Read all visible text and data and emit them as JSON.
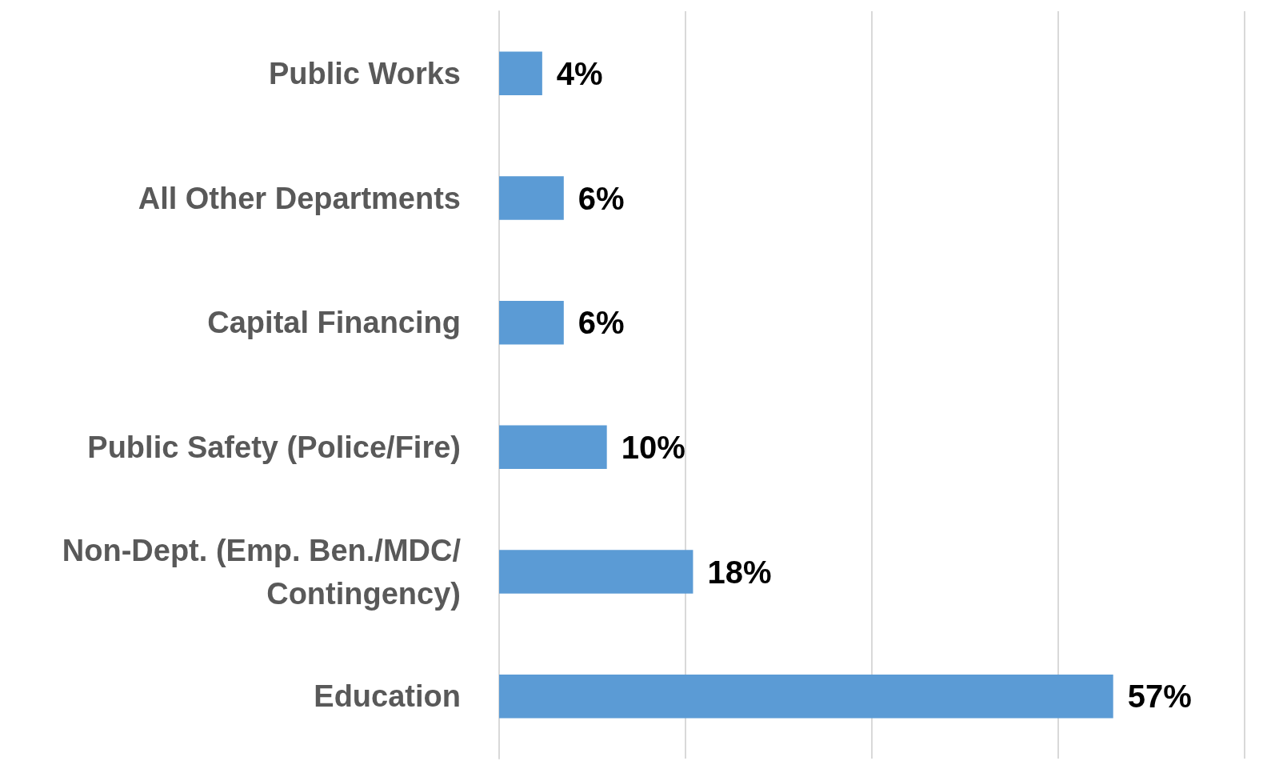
{
  "chart_data": {
    "type": "bar",
    "orientation": "horizontal",
    "categories": [
      "Public Works",
      "All Other Departments",
      "Capital Financing",
      "Public Safety (Police/Fire)",
      "Non-Dept. (Emp. Ben./MDC/Contingency)",
      "Education"
    ],
    "values": [
      4,
      6,
      6,
      10,
      18,
      57
    ],
    "value_labels": [
      "4%",
      "6%",
      "6%",
      "10%",
      "18%",
      "57%"
    ],
    "color": "#5b9bd5",
    "xlim": [
      0,
      69.2
    ],
    "xticks": [
      {
        "value": 0,
        "label": null
      },
      {
        "value": 17.3,
        "label": null
      },
      {
        "value": 34.6,
        "label": null
      },
      {
        "value": 51.9,
        "label": null
      },
      {
        "value": 69.2,
        "label": null
      }
    ],
    "grid": "x",
    "tick_labels": "y"
  }
}
